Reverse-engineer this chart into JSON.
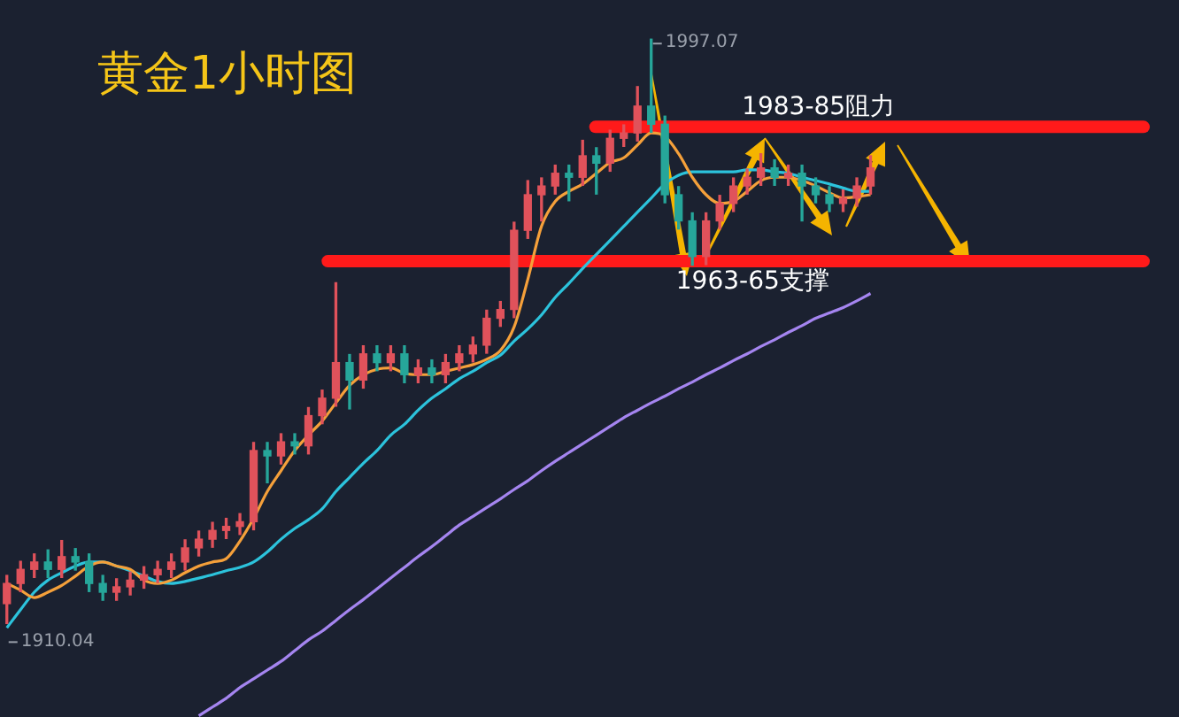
{
  "chart_data": {
    "type": "candlestick",
    "title": "黄金1小时图",
    "categories": [
      null,
      null,
      null,
      null,
      null,
      null,
      null,
      null,
      null,
      null,
      null,
      null,
      null,
      null,
      null,
      null,
      null,
      null,
      null,
      null,
      null,
      null,
      null,
      null,
      null,
      null,
      null,
      null,
      null,
      null,
      null,
      null,
      null,
      null,
      null,
      null,
      null,
      null,
      null,
      null,
      null,
      null,
      null,
      null,
      null,
      null,
      null,
      null,
      null,
      null,
      null,
      null,
      null,
      null,
      null,
      null,
      null,
      null,
      null,
      null,
      null,
      null,
      null,
      null,
      null,
      null,
      null,
      null,
      null,
      null,
      null,
      null,
      null,
      null,
      null,
      null,
      null,
      null,
      null,
      null,
      null,
      null,
      null,
      null,
      null,
      null
    ],
    "series": [
      {
        "type": "candlestick",
        "ohlc": [
          [
            1913.0,
            1917.2,
            1910.04,
            1916.0
          ],
          [
            1916.0,
            1919.3,
            1914.8,
            1918.1
          ],
          [
            1918.1,
            1920.4,
            1916.9,
            1919.2
          ],
          [
            1919.2,
            1921.0,
            1916.9,
            1918.1
          ],
          [
            1918.1,
            1922.4,
            1916.9,
            1920.0
          ],
          [
            1920.0,
            1921.2,
            1918.0,
            1919.2
          ],
          [
            1919.2,
            1920.4,
            1914.8,
            1916.0
          ],
          [
            1916.0,
            1917.2,
            1913.5,
            1914.7
          ],
          [
            1914.7,
            1916.7,
            1913.5,
            1915.5
          ],
          [
            1915.5,
            1917.7,
            1914.3,
            1916.5
          ],
          [
            1916.5,
            1918.5,
            1915.3,
            1917.3
          ],
          [
            1917.3,
            1919.3,
            1916.1,
            1918.1
          ],
          [
            1918.1,
            1920.4,
            1916.9,
            1919.2
          ],
          [
            1919.2,
            1922.5,
            1918.0,
            1921.3
          ],
          [
            1921.3,
            1923.8,
            1920.1,
            1922.6
          ],
          [
            1922.6,
            1925.1,
            1921.4,
            1923.9
          ],
          [
            1923.9,
            1925.7,
            1922.7,
            1924.5
          ],
          [
            1924.5,
            1926.4,
            1923.3,
            1925.2
          ],
          [
            1925.2,
            1937.0,
            1924.0,
            1935.8
          ],
          [
            1935.8,
            1937.0,
            1931.0,
            1935.0
          ],
          [
            1935.0,
            1938.3,
            1933.8,
            1937.1
          ],
          [
            1937.1,
            1938.3,
            1935.3,
            1936.5
          ],
          [
            1936.5,
            1942.2,
            1935.3,
            1941.0
          ],
          [
            1941.0,
            1944.8,
            1939.8,
            1943.6
          ],
          [
            1943.6,
            1960.8,
            1942.4,
            1948.9
          ],
          [
            1948.9,
            1950.1,
            1942.0,
            1946.3
          ],
          [
            1946.3,
            1951.4,
            1945.1,
            1950.2
          ],
          [
            1950.2,
            1951.4,
            1947.7,
            1948.9
          ],
          [
            1948.9,
            1951.4,
            1947.7,
            1950.2
          ],
          [
            1950.2,
            1951.4,
            1945.9,
            1947.1
          ],
          [
            1947.1,
            1949.3,
            1945.9,
            1948.1
          ],
          [
            1948.1,
            1949.3,
            1945.9,
            1947.1
          ],
          [
            1947.1,
            1950.1,
            1945.9,
            1948.9
          ],
          [
            1948.9,
            1951.4,
            1947.7,
            1950.2
          ],
          [
            1950.2,
            1952.7,
            1949.0,
            1951.5
          ],
          [
            1951.5,
            1956.7,
            1950.3,
            1955.5
          ],
          [
            1955.5,
            1958.0,
            1954.3,
            1956.8
          ],
          [
            1956.8,
            1969.8,
            1955.6,
            1968.6
          ],
          [
            1968.6,
            1976.0,
            1967.4,
            1973.9
          ],
          [
            1973.9,
            1976.4,
            1970.0,
            1975.2
          ],
          [
            1975.2,
            1978.3,
            1974.0,
            1977.1
          ],
          [
            1977.1,
            1978.3,
            1973.0,
            1976.5
          ],
          [
            1976.5,
            1982.0,
            1975.3,
            1979.7
          ],
          [
            1979.7,
            1980.9,
            1974.0,
            1978.6
          ],
          [
            1978.6,
            1983.5,
            1977.4,
            1982.3
          ],
          [
            1982.3,
            1984.3,
            1981.1,
            1983.1
          ],
          [
            1983.1,
            1990.0,
            1981.9,
            1987.1
          ],
          [
            1987.1,
            1997.07,
            1983.2,
            1984.4
          ],
          [
            1984.4,
            1985.6,
            1972.7,
            1973.9
          ],
          [
            1973.9,
            1975.1,
            1968.8,
            1970.0
          ],
          [
            1970.0,
            1971.2,
            1963.4,
            1964.7
          ],
          [
            1964.7,
            1971.2,
            1963.5,
            1970.0
          ],
          [
            1970.0,
            1973.8,
            1968.8,
            1972.6
          ],
          [
            1972.6,
            1976.4,
            1971.4,
            1975.2
          ],
          [
            1975.2,
            1977.7,
            1974.0,
            1976.5
          ],
          [
            1976.5,
            1980.0,
            1975.3,
            1977.9
          ],
          [
            1977.9,
            1979.1,
            1975.3,
            1976.5
          ],
          [
            1976.5,
            1978.3,
            1975.3,
            1977.1
          ],
          [
            1977.1,
            1978.3,
            1970.0,
            1975.2
          ],
          [
            1975.2,
            1976.4,
            1972.7,
            1973.9
          ],
          [
            1973.9,
            1975.1,
            1971.4,
            1972.6
          ],
          [
            1972.6,
            1974.6,
            1971.4,
            1973.4
          ],
          [
            1973.4,
            1976.4,
            1972.2,
            1975.2
          ],
          [
            1975.2,
            1979.7,
            1974.0,
            1977.9
          ],
          null,
          null,
          null,
          null,
          null,
          null,
          null,
          null,
          null,
          null,
          null,
          null,
          null,
          null,
          null,
          null,
          null,
          null,
          null,
          null,
          null,
          null
        ],
        "colors": [
          "#e0525b",
          "#e0525b",
          "#e0525b",
          "#26a69a",
          "#e0525b",
          "#26a69a",
          "#26a69a",
          "#26a69a",
          "#e0525b",
          "#e0525b",
          "#e0525b",
          "#e0525b",
          "#e0525b",
          "#e0525b",
          "#e0525b",
          "#e0525b",
          "#e0525b",
          "#e0525b",
          "#e0525b",
          "#26a69a",
          "#e0525b",
          "#26a69a",
          "#e0525b",
          "#e0525b",
          "#e0525b",
          "#26a69a",
          "#e0525b",
          "#26a69a",
          "#e0525b",
          "#26a69a",
          "#e0525b",
          "#26a69a",
          "#e0525b",
          "#e0525b",
          "#e0525b",
          "#e0525b",
          "#e0525b",
          "#e0525b",
          "#e0525b",
          "#e0525b",
          "#e0525b",
          "#26a69a",
          "#e0525b",
          "#26a69a",
          "#e0525b",
          "#e0525b",
          "#e0525b",
          "#26a69a",
          "#26a69a",
          "#26a69a",
          "#26a69a",
          "#e0525b",
          "#e0525b",
          "#e0525b",
          "#e0525b",
          "#e0525b",
          "#26a69a",
          "#e0525b",
          "#26a69a",
          "#26a69a",
          "#26a69a",
          "#e0525b",
          "#e0525b",
          "#e0525b",
          null,
          null,
          null,
          null,
          null,
          null,
          null,
          null,
          null,
          null,
          null,
          null,
          null,
          null,
          null,
          null,
          null,
          null,
          null,
          null,
          null,
          null
        ]
      },
      {
        "type": "line",
        "color": "#f5a03a",
        "values": [
          1916.0,
          1915.0,
          1913.9,
          1914.7,
          1915.7,
          1917.1,
          1918.6,
          1919.2,
          1918.6,
          1918.1,
          1916.5,
          1916.0,
          1916.5,
          1917.6,
          1918.6,
          1919.2,
          1919.7,
          1922.3,
          1925.7,
          1929.7,
          1932.8,
          1935.8,
          1938.1,
          1940.2,
          1942.9,
          1945.5,
          1947.1,
          1947.9,
          1948.1,
          1947.3,
          1947.1,
          1947.1,
          1947.6,
          1948.1,
          1948.6,
          1949.4,
          1950.7,
          1954.2,
          1961.3,
          1969.2,
          1972.9,
          1974.4,
          1975.5,
          1977.1,
          1978.7,
          1979.4,
          1981.3,
          1983.1,
          1982.6,
          1980.0,
          1976.5,
          1973.9,
          1972.6,
          1972.9,
          1974.4,
          1976.0,
          1976.5,
          1976.5,
          1976.0,
          1975.2,
          1974.2,
          1973.4,
          1973.6,
          1973.9,
          null,
          null,
          null,
          null,
          null,
          null,
          null,
          null,
          null,
          null,
          null,
          null,
          null,
          null,
          null,
          null,
          null,
          null,
          null,
          null,
          null,
          null
        ]
      },
      {
        "type": "line",
        "color": "#2cc3dc",
        "values": [
          1909.4,
          1912.1,
          1914.7,
          1916.5,
          1917.6,
          1918.6,
          1919.2,
          1919.2,
          1918.6,
          1917.9,
          1917.1,
          1916.3,
          1916.0,
          1916.3,
          1916.8,
          1917.3,
          1917.9,
          1918.4,
          1919.2,
          1920.7,
          1922.6,
          1924.2,
          1925.5,
          1927.1,
          1929.7,
          1931.8,
          1933.9,
          1935.8,
          1938.1,
          1939.7,
          1941.8,
          1943.6,
          1945.0,
          1946.5,
          1947.6,
          1948.9,
          1950.0,
          1952.1,
          1953.9,
          1956.0,
          1958.6,
          1960.7,
          1962.9,
          1965.0,
          1967.1,
          1969.2,
          1971.3,
          1973.4,
          1975.5,
          1976.8,
          1977.3,
          1977.3,
          1977.3,
          1977.3,
          1977.6,
          1977.6,
          1977.3,
          1977.1,
          1976.5,
          1976.0,
          1975.5,
          1974.9,
          1974.4,
          1974.4,
          null,
          null,
          null,
          null,
          null,
          null,
          null,
          null,
          null,
          null,
          null,
          null,
          null,
          null,
          null,
          null,
          null,
          null,
          null,
          null,
          null,
          null
        ]
      },
      {
        "type": "line",
        "color": "#a585f0",
        "values": [
          null,
          null,
          null,
          null,
          null,
          null,
          null,
          null,
          null,
          null,
          null,
          null,
          null,
          null,
          1896.3,
          1897.6,
          1898.9,
          1900.5,
          1901.8,
          1903.1,
          1904.4,
          1906.0,
          1907.6,
          1908.9,
          1910.5,
          1912.1,
          1913.6,
          1915.2,
          1916.8,
          1918.4,
          1920.0,
          1921.5,
          1923.1,
          1924.7,
          1926.0,
          1927.3,
          1928.6,
          1930.0,
          1931.3,
          1932.8,
          1934.2,
          1935.5,
          1936.8,
          1938.1,
          1939.4,
          1940.7,
          1941.8,
          1942.9,
          1943.9,
          1945.0,
          1946.0,
          1947.1,
          1948.1,
          1949.2,
          1950.2,
          1951.3,
          1952.3,
          1953.4,
          1954.4,
          1955.5,
          1956.3,
          1957.1,
          1958.1,
          1959.2,
          null,
          null,
          null,
          null,
          null,
          null,
          null,
          null,
          null,
          null,
          null,
          null,
          null,
          null,
          null,
          null,
          null,
          null,
          null,
          null,
          null,
          null
        ]
      }
    ],
    "ref_lines": [
      {
        "axis": "y",
        "value": 1984,
        "label": "1983-85阻力",
        "color": "#ff1a1a"
      },
      {
        "axis": "y",
        "value": 1964,
        "label": "1963-65支撑",
        "color": "#ff1a1a"
      }
    ],
    "annotations": [
      "1997.07",
      "1910.04"
    ]
  }
}
